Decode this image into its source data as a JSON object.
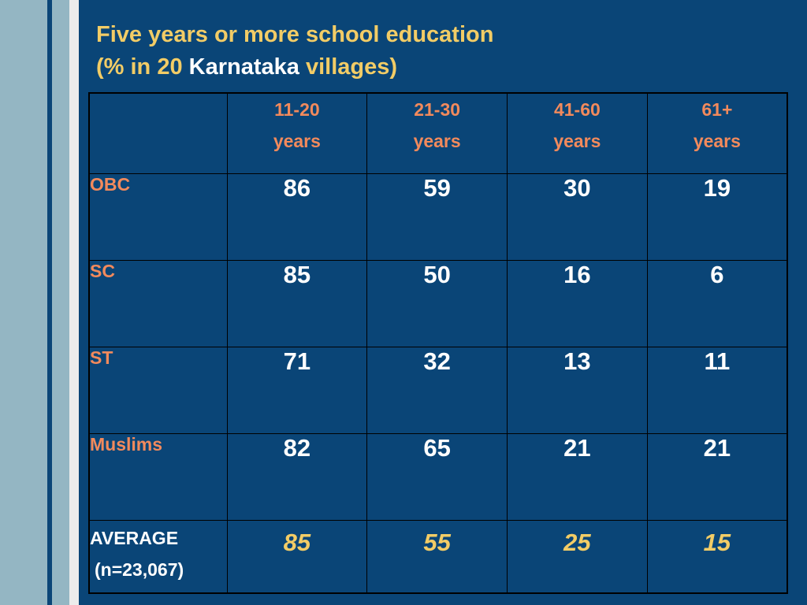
{
  "title": {
    "line1": "Five years or more school education",
    "line2_pre": "(% in 20 ",
    "line2_highlight": "Karnataka",
    "line2_post": " villages)"
  },
  "table": {
    "headers": [
      {
        "range": "11-20",
        "unit": "years"
      },
      {
        "range": "21-30",
        "unit": "years"
      },
      {
        "range": "41-60",
        "unit": "years"
      },
      {
        "range": "61+",
        "unit": "years"
      }
    ],
    "rows": [
      {
        "label": "OBC",
        "values": [
          "86",
          "59",
          "30",
          "19"
        ]
      },
      {
        "label": "SC",
        "values": [
          "85",
          "50",
          "16",
          "6"
        ]
      },
      {
        "label": "ST",
        "values": [
          "71",
          "32",
          "13",
          "11"
        ]
      },
      {
        "label": "Muslims",
        "values": [
          "82",
          "65",
          "21",
          "21"
        ]
      }
    ],
    "average": {
      "label": "AVERAGE",
      "sublabel": "(n=23,067)",
      "values": [
        "85",
        "55",
        "25",
        "15"
      ]
    }
  },
  "colors": {
    "background": "#0a4577",
    "title": "#f2cc66",
    "highlight": "#ffffff",
    "header_text": "#f28a5c",
    "value_text": "#ffffff",
    "average_value_text": "#f2cc66",
    "decorative_strip_light": "#94b6c3",
    "decorative_strip_white": "#ececec"
  }
}
